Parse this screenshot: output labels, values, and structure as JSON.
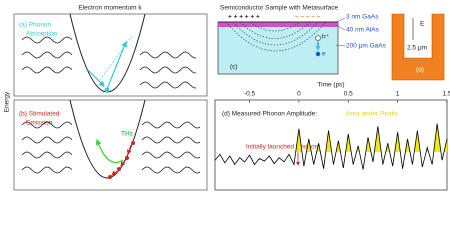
{
  "figure": {
    "left_title": "Electron momentum  k",
    "energy_label": "Energy",
    "panel_a": {
      "label": "(a) Phonon",
      "label2": "Absorption"
    },
    "panel_b": {
      "label": "(b) Stimulated",
      "label2": "Emission",
      "thz": "THz"
    },
    "sample_title": "Semiconductor Sample with Metasurface",
    "layers": [
      "3 nm GaAs",
      "40 nm AlAs",
      "200 μm GaAs"
    ],
    "charges_plus": "+ + + + + +",
    "charges_minus": "– – – – –",
    "hole": "h⁺",
    "electron": "e",
    "panel_c": "(c)",
    "field": "E",
    "size": "2.5 μm",
    "panel_d": "(d)"
  },
  "chart_data": {
    "type": "line",
    "title": "(d) Measured Phonon Amplitude:",
    "legend_note": "Area under Peaks",
    "annotation": "Initially launched  Phonon",
    "xlabel": "Time (ps)",
    "x": [
      -0.85,
      -0.8,
      -0.75,
      -0.7,
      -0.65,
      -0.6,
      -0.55,
      -0.5,
      -0.45,
      -0.4,
      -0.35,
      -0.3,
      -0.25,
      -0.2,
      -0.15,
      -0.1,
      -0.05,
      0,
      0.05,
      0.1,
      0.15,
      0.2,
      0.25,
      0.3,
      0.35,
      0.4,
      0.45,
      0.5,
      0.55,
      0.6,
      0.65,
      0.7,
      0.75,
      0.8,
      0.85,
      0.9,
      0.95,
      1,
      1.05,
      1.1,
      1.15,
      1.2,
      1.25,
      1.3,
      1.35,
      1.4,
      1.45,
      1.5
    ],
    "series": [
      {
        "color": "#000000",
        "fill": "#f0ea10",
        "values": [
          0.35,
          0.42,
          0.32,
          0.4,
          0.3,
          0.38,
          0.33,
          0.41,
          0.3,
          0.37,
          0.34,
          0.4,
          0.31,
          0.38,
          0.33,
          0.42,
          0.3,
          0.72,
          0.28,
          0.6,
          0.3,
          0.55,
          0.25,
          0.7,
          0.3,
          0.58,
          0.26,
          0.66,
          0.3,
          0.52,
          0.24,
          0.62,
          0.33,
          0.75,
          0.3,
          0.55,
          0.28,
          0.68,
          0.25,
          0.6,
          0.3,
          0.7,
          0.27,
          0.5,
          0.3,
          0.78,
          0.35,
          0.6
        ]
      }
    ],
    "xlim": [
      -0.85,
      1.5
    ],
    "xticks": [
      -0.5,
      0,
      0.5,
      1,
      1.5
    ],
    "ylim": [
      0,
      1
    ]
  }
}
